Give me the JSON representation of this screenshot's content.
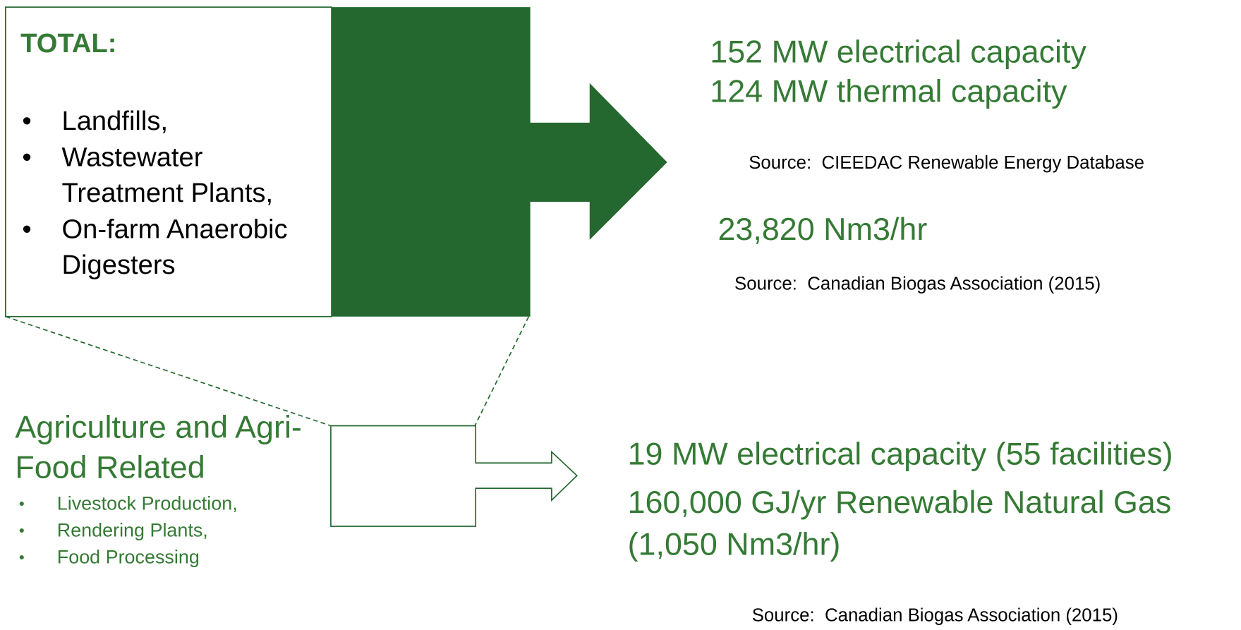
{
  "total": {
    "title": "TOTAL:",
    "items": [
      "Landfills,",
      "Wastewater Treatment Plants,",
      "On-farm Anaerobic Digesters"
    ]
  },
  "total_outputs": {
    "electrical": "152 MW electrical capacity",
    "thermal": "124 MW thermal capacity",
    "source_1": "Source:  CIEEDAC Renewable Energy Database",
    "biogas": "23,820 Nm3/hr",
    "source_2": "Source:  Canadian Biogas Association (2015)"
  },
  "agriculture": {
    "title": "Agriculture and Agri-Food Related",
    "items": [
      "Livestock Production,",
      "Rendering Plants,",
      "Food Processing"
    ]
  },
  "agriculture_outputs": {
    "electrical": "19 MW electrical capacity (55 facilities)",
    "rng": "160,000 GJ/yr Renewable Natural Gas (1,050 Nm3/hr)",
    "source": "Source:  Canadian Biogas Association (2015)"
  }
}
